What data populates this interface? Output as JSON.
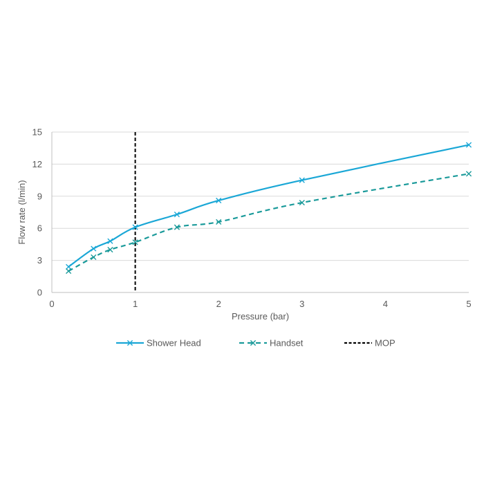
{
  "chart_data": {
    "type": "line",
    "xlabel": "Pressure (bar)",
    "ylabel": "Flow rate (l/min)",
    "xlim": [
      0,
      5
    ],
    "ylim": [
      0,
      15
    ],
    "xticks": [
      0,
      1,
      2,
      3,
      4,
      5
    ],
    "yticks": [
      0,
      3,
      6,
      9,
      12,
      15
    ],
    "xtick_labels": [
      "0",
      "1",
      "2",
      "3",
      "4",
      "5"
    ],
    "ytick_labels": [
      "0",
      "3",
      "6",
      "9",
      "12",
      "15"
    ],
    "grid": "horizontal",
    "legend_position": "bottom",
    "series": [
      {
        "name": "Shower Head",
        "color": "#1AA7D6",
        "style": "solid",
        "marker": "x",
        "x": [
          0.2,
          0.5,
          0.7,
          1.0,
          1.5,
          2.0,
          3.0,
          5.0
        ],
        "y": [
          2.4,
          4.1,
          4.8,
          6.1,
          7.3,
          8.6,
          10.5,
          13.8
        ]
      },
      {
        "name": "Handset",
        "color": "#1A9A9A",
        "style": "dashed",
        "marker": "x",
        "x": [
          0.2,
          0.5,
          0.7,
          1.0,
          1.5,
          2.0,
          3.0,
          5.0
        ],
        "y": [
          2.0,
          3.3,
          4.0,
          4.7,
          6.1,
          6.6,
          8.4,
          11.1
        ]
      }
    ],
    "vertical_lines": [
      {
        "name": "MOP",
        "x": 1.0,
        "color": "#000000",
        "style": "dashed"
      }
    ]
  }
}
